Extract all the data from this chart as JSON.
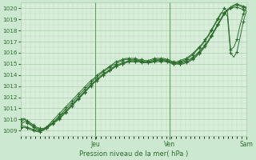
{
  "xlabel": "Pression niveau de la mer( hPa )",
  "bg_color": "#cce8d0",
  "plot_bg_color": "#d8eeda",
  "grid_color": "#aacfaa",
  "line_color": "#2d6e2d",
  "marker_color": "#2d6e2d",
  "ylim": [
    1008.5,
    1020.5
  ],
  "yticks": [
    1009,
    1010,
    1011,
    1012,
    1013,
    1014,
    1015,
    1016,
    1017,
    1018,
    1019,
    1020
  ],
  "day_labels": [
    "Jeu",
    "Ven",
    "Sam"
  ],
  "day_positions": [
    0.33,
    0.66,
    1.0
  ],
  "num_points": 72,
  "series": [
    [
      1009.5,
      1009.8,
      1009.7,
      1009.5,
      1009.3,
      1009.1,
      1009.0,
      1009.1,
      1009.2,
      1009.4,
      1009.6,
      1009.8,
      1010.0,
      1010.3,
      1010.6,
      1010.9,
      1011.2,
      1011.5,
      1011.8,
      1012.1,
      1012.4,
      1012.7,
      1013.0,
      1013.3,
      1013.5,
      1013.8,
      1014.0,
      1014.2,
      1014.4,
      1014.6,
      1014.8,
      1014.9,
      1015.0,
      1015.1,
      1015.2,
      1015.2,
      1015.2,
      1015.2,
      1015.1,
      1015.1,
      1015.1,
      1015.1,
      1015.2,
      1015.2,
      1015.2,
      1015.2,
      1015.2,
      1015.1,
      1015.0,
      1015.0,
      1015.0,
      1015.0,
      1015.1,
      1015.2,
      1015.4,
      1015.6,
      1015.9,
      1016.2,
      1016.6,
      1017.0,
      1017.5,
      1018.0,
      1018.5,
      1019.0,
      1019.5,
      1019.8,
      1020.0,
      1020.1,
      1020.1,
      1020.0,
      1019.9,
      1019.8
    ],
    [
      1010.0,
      1010.1,
      1009.9,
      1009.7,
      1009.5,
      1009.3,
      1009.2,
      1009.2,
      1009.3,
      1009.5,
      1009.7,
      1009.9,
      1010.2,
      1010.5,
      1010.7,
      1011.0,
      1011.3,
      1011.6,
      1011.9,
      1012.2,
      1012.5,
      1012.8,
      1013.1,
      1013.4,
      1013.6,
      1013.9,
      1014.1,
      1014.3,
      1014.5,
      1014.7,
      1014.9,
      1015.0,
      1015.1,
      1015.2,
      1015.3,
      1015.3,
      1015.3,
      1015.3,
      1015.2,
      1015.2,
      1015.2,
      1015.2,
      1015.3,
      1015.3,
      1015.3,
      1015.3,
      1015.3,
      1015.2,
      1015.1,
      1015.1,
      1015.1,
      1015.2,
      1015.3,
      1015.4,
      1015.6,
      1015.8,
      1016.1,
      1016.4,
      1016.7,
      1017.1,
      1017.5,
      1018.0,
      1018.5,
      1019.0,
      1019.5,
      1019.8,
      1020.0,
      1020.2,
      1020.3,
      1020.2,
      1020.1,
      1020.0
    ],
    [
      1009.8,
      1010.0,
      1009.8,
      1009.6,
      1009.4,
      1009.2,
      1009.1,
      1009.1,
      1009.3,
      1009.5,
      1009.7,
      1009.9,
      1010.1,
      1010.4,
      1010.7,
      1011.0,
      1011.3,
      1011.6,
      1011.9,
      1012.2,
      1012.5,
      1012.8,
      1013.1,
      1013.3,
      1013.6,
      1013.8,
      1014.0,
      1014.2,
      1014.4,
      1014.6,
      1014.8,
      1014.9,
      1015.0,
      1015.1,
      1015.2,
      1015.2,
      1015.2,
      1015.2,
      1015.2,
      1015.1,
      1015.1,
      1015.2,
      1015.3,
      1015.3,
      1015.3,
      1015.3,
      1015.2,
      1015.1,
      1015.0,
      1015.0,
      1015.0,
      1015.1,
      1015.2,
      1015.3,
      1015.5,
      1015.7,
      1016.0,
      1016.3,
      1016.7,
      1017.1,
      1017.6,
      1018.1,
      1018.6,
      1019.1,
      1019.6,
      1019.9,
      1020.1,
      1020.3,
      1020.4,
      1020.3,
      1020.2,
      1020.1
    ],
    [
      1009.2,
      1009.3,
      1009.2,
      1009.1,
      1009.0,
      1008.9,
      1008.9,
      1009.0,
      1009.2,
      1009.4,
      1009.7,
      1010.0,
      1010.3,
      1010.6,
      1010.9,
      1011.2,
      1011.5,
      1011.8,
      1012.1,
      1012.4,
      1012.7,
      1013.0,
      1013.3,
      1013.6,
      1013.8,
      1014.1,
      1014.3,
      1014.5,
      1014.7,
      1014.9,
      1015.0,
      1015.2,
      1015.3,
      1015.4,
      1015.4,
      1015.4,
      1015.4,
      1015.3,
      1015.3,
      1015.2,
      1015.2,
      1015.3,
      1015.4,
      1015.4,
      1015.4,
      1015.4,
      1015.3,
      1015.2,
      1015.1,
      1015.1,
      1015.2,
      1015.3,
      1015.4,
      1015.6,
      1015.8,
      1016.1,
      1016.4,
      1016.7,
      1017.1,
      1017.5,
      1018.0,
      1018.5,
      1019.0,
      1019.5,
      1020.0,
      1019.7,
      1016.3,
      1016.5,
      1017.2,
      1018.5,
      1019.5,
      1020.1
    ],
    [
      1009.3,
      1009.4,
      1009.3,
      1009.2,
      1009.1,
      1009.0,
      1009.0,
      1009.1,
      1009.3,
      1009.6,
      1009.9,
      1010.2,
      1010.5,
      1010.8,
      1011.1,
      1011.4,
      1011.7,
      1012.0,
      1012.3,
      1012.6,
      1012.9,
      1013.2,
      1013.5,
      1013.7,
      1014.0,
      1014.2,
      1014.4,
      1014.6,
      1014.8,
      1015.0,
      1015.2,
      1015.3,
      1015.4,
      1015.5,
      1015.5,
      1015.5,
      1015.5,
      1015.4,
      1015.4,
      1015.3,
      1015.3,
      1015.4,
      1015.5,
      1015.5,
      1015.5,
      1015.5,
      1015.4,
      1015.3,
      1015.2,
      1015.2,
      1015.3,
      1015.4,
      1015.5,
      1015.7,
      1015.9,
      1016.2,
      1016.5,
      1016.8,
      1017.2,
      1017.6,
      1018.1,
      1018.6,
      1019.1,
      1019.6,
      1019.6,
      1019.3,
      1016.0,
      1015.6,
      1016.1,
      1017.4,
      1018.8,
      1019.8
    ]
  ]
}
